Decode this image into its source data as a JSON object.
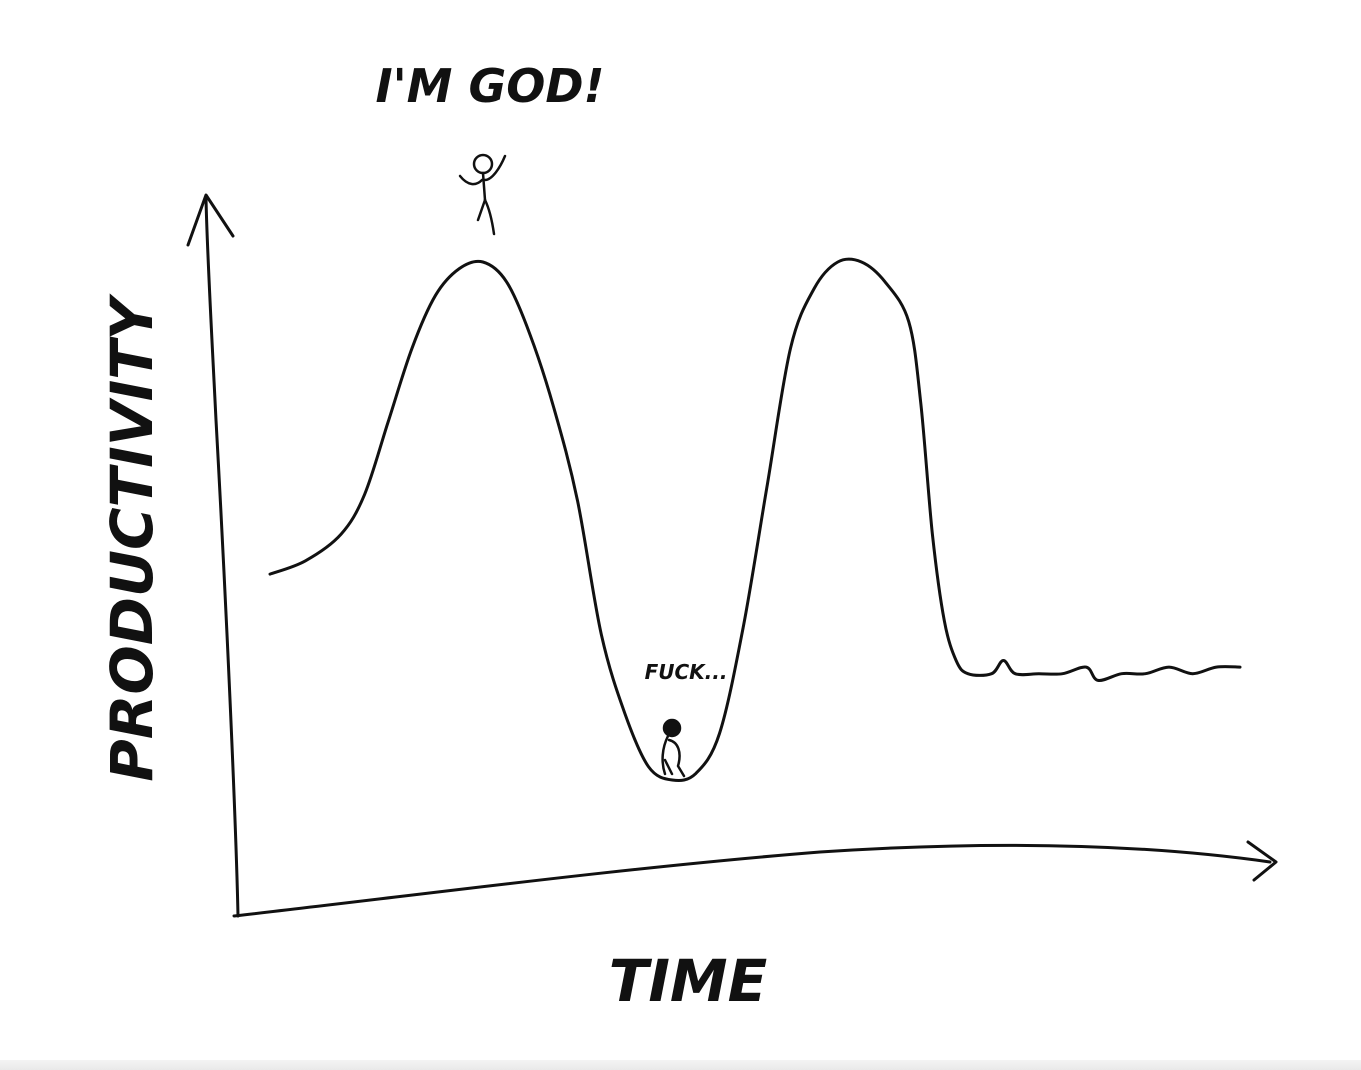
{
  "chart_data": {
    "type": "line",
    "title": "",
    "xlabel": "TIME",
    "ylabel": "PRODUCTIVITY",
    "xlim": [
      0,
      100
    ],
    "ylim": [
      0,
      100
    ],
    "grid": false,
    "legend": "none",
    "series": [
      {
        "points": [
          [
            0,
            49
          ],
          [
            3,
            51
          ],
          [
            6,
            55
          ],
          [
            8,
            61
          ],
          [
            10,
            72
          ],
          [
            12,
            83
          ],
          [
            14,
            91
          ],
          [
            16,
            95
          ],
          [
            18,
            96
          ],
          [
            20,
            93
          ],
          [
            22,
            85
          ],
          [
            24,
            74
          ],
          [
            26,
            60
          ],
          [
            28,
            40
          ],
          [
            30,
            28
          ],
          [
            32,
            20
          ],
          [
            34,
            18
          ],
          [
            36,
            19
          ],
          [
            38,
            25
          ],
          [
            40,
            41
          ],
          [
            42,
            62
          ],
          [
            44,
            83
          ],
          [
            46,
            92
          ],
          [
            48,
            96
          ],
          [
            50,
            96
          ],
          [
            52,
            93
          ],
          [
            54,
            87
          ],
          [
            55,
            75
          ],
          [
            56,
            55
          ],
          [
            57,
            42
          ],
          [
            58,
            36
          ],
          [
            59,
            34
          ],
          [
            61,
            34
          ],
          [
            62,
            36
          ],
          [
            63,
            34
          ],
          [
            65,
            34
          ],
          [
            67,
            34
          ],
          [
            69,
            35
          ],
          [
            70,
            33
          ],
          [
            72,
            34
          ],
          [
            74,
            34
          ],
          [
            76,
            35
          ],
          [
            78,
            34
          ],
          [
            80,
            35
          ],
          [
            82,
            35
          ]
        ]
      }
    ],
    "annotations": [
      {
        "text": "I'M GOD!",
        "x": 18,
        "y": 96
      },
      {
        "text": "FUCK...",
        "x": 34,
        "y": 18
      }
    ]
  },
  "colors": {
    "ink": "#111111",
    "background": "#ffffff"
  },
  "icons": {
    "peak": "stick-figure-cheering-icon",
    "trough": "stick-figure-sitting-icon"
  }
}
